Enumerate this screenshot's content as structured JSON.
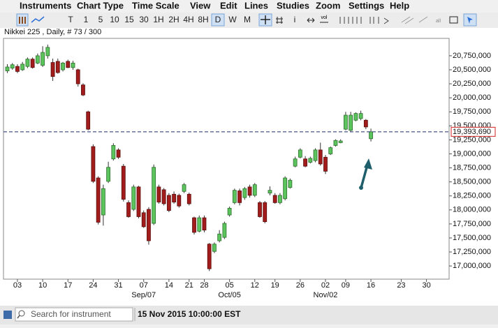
{
  "menu": [
    "Instruments",
    "Chart Type",
    "Time Scale",
    "View",
    "Edit",
    "Lines",
    "Studies",
    "Zoom",
    "Settings",
    "Help"
  ],
  "toolbar": [
    "T",
    "1",
    "5",
    "10",
    "15",
    "30",
    "1H",
    "2H",
    "4H",
    "8H",
    "D",
    "W",
    "M"
  ],
  "search_placeholder": "Search for instrument",
  "status_time": "15 Nov 2015 10:00:00 EST",
  "chart_data": {
    "type": "candlestick",
    "title": "Nikkei 225 , Daily, # 73 / 300",
    "categories": [
      null,
      null,
      "03",
      null,
      null,
      null,
      null,
      "10",
      null,
      null,
      null,
      null,
      "17",
      null,
      null,
      null,
      null,
      "24",
      null,
      null,
      null,
      null,
      "31",
      null,
      null,
      null,
      null,
      "07",
      null,
      null,
      null,
      null,
      "14",
      null,
      null,
      null,
      "21",
      null,
      null,
      "28",
      null,
      null,
      null,
      null,
      "05",
      null,
      null,
      null,
      null,
      "12",
      null,
      null,
      null,
      "19",
      null,
      null,
      null,
      null,
      "26",
      null,
      null,
      null,
      null,
      "02",
      null,
      null,
      null,
      "09",
      null,
      null,
      null,
      null,
      "16",
      null,
      null,
      null,
      null,
      null,
      "23",
      null,
      null,
      null,
      null,
      "30",
      null,
      null,
      null,
      null
    ],
    "month_labels": [
      null,
      null,
      null,
      null,
      null,
      null,
      null,
      null,
      null,
      null,
      null,
      null,
      null,
      null,
      null,
      null,
      null,
      null,
      null,
      null,
      null,
      null,
      null,
      null,
      null,
      null,
      null,
      "Sep/07",
      null,
      null,
      null,
      null,
      null,
      null,
      null,
      null,
      null,
      null,
      null,
      null,
      null,
      null,
      null,
      null,
      "Oct/05",
      null,
      null,
      null,
      null,
      null,
      null,
      null,
      null,
      null,
      null,
      null,
      null,
      null,
      null,
      null,
      null,
      null,
      null,
      "Nov/02",
      null,
      null,
      null,
      null,
      null,
      null,
      null,
      null,
      null,
      null,
      null,
      null,
      null,
      null,
      null,
      null,
      null,
      null,
      null,
      null,
      null,
      null,
      null,
      null
    ],
    "open": [
      20480000,
      20530000,
      20560000,
      20500000,
      20560000,
      20690000,
      20620000,
      20580000,
      20750000,
      20630000,
      20650000,
      20500000,
      20650000,
      20540000,
      20500000,
      20230000,
      19750000,
      19130000,
      18570000,
      17910000,
      18510000,
      18910000,
      19070000,
      18780000,
      18130000,
      18010000,
      18410000,
      17950000,
      18010000,
      17760000,
      18410000,
      18360000,
      18260000,
      18280000,
      18260000,
      18330000,
      18280000,
      17860000,
      17620000,
      17860000,
      17390000,
      17260000,
      17450000,
      17510000,
      17910000,
      18130000,
      18340000,
      18220000,
      18410000,
      18260000,
      18130000,
      18130000,
      18300000,
      18260000,
      18130000,
      18200000,
      18400000,
      18780000,
      18940000,
      18910000,
      18850000,
      18880000,
      19070000,
      18940000,
      19000000,
      19150000,
      19200000,
      19440000,
      19420000,
      19600000,
      19630000,
      19600000,
      19270000,
      null,
      null,
      null,
      null,
      null,
      null,
      null,
      null,
      null,
      null,
      null,
      null,
      null,
      null,
      null
    ],
    "high": [
      20600000,
      20620000,
      20600000,
      20640000,
      20720000,
      20720000,
      20790000,
      20920000,
      20950000,
      20700000,
      20700000,
      20640000,
      20680000,
      20660000,
      20520000,
      20260000,
      19770000,
      19170000,
      18600000,
      18450000,
      18860000,
      19190000,
      19100000,
      18820000,
      18170000,
      18450000,
      18430000,
      17990000,
      18050000,
      18810000,
      18450000,
      18390000,
      18300000,
      18330000,
      18290000,
      18480000,
      18310000,
      17880000,
      17900000,
      17900000,
      17410000,
      17420000,
      17640000,
      17790000,
      18060000,
      18380000,
      18380000,
      18410000,
      18450000,
      18480000,
      18160000,
      18160000,
      18420000,
      18300000,
      18300000,
      18600000,
      18560000,
      18950000,
      19100000,
      18960000,
      18950000,
      19100000,
      19200000,
      18980000,
      19130000,
      19260000,
      19260000,
      19750000,
      19750000,
      19740000,
      19770000,
      19620000,
      19450000,
      null,
      null,
      null,
      null,
      null,
      null,
      null,
      null,
      null,
      null,
      null,
      null,
      null,
      null,
      null
    ],
    "low": [
      20440000,
      20500000,
      20440000,
      20480000,
      20530000,
      20520000,
      20600000,
      20550000,
      20700000,
      20300000,
      20430000,
      20470000,
      20530000,
      20500000,
      20200000,
      20030000,
      19420000,
      18480000,
      17740000,
      17720000,
      18480000,
      18880000,
      18910000,
      18150000,
      17860000,
      17980000,
      17850000,
      17680000,
      17380000,
      17730000,
      18110000,
      18080000,
      17960000,
      18110000,
      18040000,
      18300000,
      18080000,
      17560000,
      17600000,
      17600000,
      16910000,
      17230000,
      17420000,
      17480000,
      17880000,
      18100000,
      18080000,
      18180000,
      18220000,
      18230000,
      17860000,
      17760000,
      18260000,
      18110000,
      18100000,
      18170000,
      18380000,
      18760000,
      18920000,
      18760000,
      18830000,
      18850000,
      18790000,
      18640000,
      18980000,
      19130000,
      19190000,
      19420000,
      19400000,
      19580000,
      19600000,
      19440000,
      19220000,
      null,
      null,
      null,
      null,
      null,
      null,
      null,
      null,
      null,
      null,
      null,
      null,
      null,
      null,
      null
    ],
    "close": [
      20550000,
      20590000,
      20470000,
      20600000,
      20690000,
      20540000,
      20750000,
      20810000,
      20900000,
      20380000,
      20450000,
      20620000,
      20540000,
      20620000,
      20250000,
      20050000,
      19440000,
      18510000,
      17780000,
      18380000,
      18760000,
      19150000,
      18940000,
      18190000,
      17880000,
      18410000,
      17880000,
      17700000,
      17450000,
      18760000,
      18140000,
      18110000,
      17990000,
      18140000,
      18070000,
      18450000,
      18110000,
      17600000,
      17860000,
      17640000,
      16950000,
      17390000,
      17570000,
      17760000,
      18030000,
      18350000,
      18130000,
      18380000,
      18260000,
      18450000,
      17880000,
      17790000,
      18350000,
      18130000,
      18260000,
      18570000,
      18530000,
      18910000,
      19070000,
      18780000,
      18920000,
      19070000,
      18820000,
      18690000,
      19110000,
      19240000,
      19230000,
      19690000,
      19690000,
      19720000,
      19720000,
      19480000,
      19393690,
      null,
      null,
      null,
      null,
      null,
      null,
      null,
      null,
      null,
      null,
      null,
      null,
      null,
      null,
      null
    ],
    "up_color": "#5cc45c",
    "down_color": "#a31c1c",
    "ylim": [
      16765000,
      21060000
    ],
    "yticks": [
      {
        "value": 17000000,
        "label": "17,000,000"
      },
      {
        "value": 17250000,
        "label": "17,250,000"
      },
      {
        "value": 17500000,
        "label": "17,500,000"
      },
      {
        "value": 17750000,
        "label": "17,750,000"
      },
      {
        "value": 18000000,
        "label": "18,000,000"
      },
      {
        "value": 18250000,
        "label": "18,250,000"
      },
      {
        "value": 18500000,
        "label": "18,500,000"
      },
      {
        "value": 18750000,
        "label": "18,750,000"
      },
      {
        "value": 19000000,
        "label": "19,000,000"
      },
      {
        "value": 19250000,
        "label": "19,250,000"
      },
      {
        "value": 19500000,
        "label": "19,500,000"
      },
      {
        "value": 19750000,
        "label": "19,750,000"
      },
      {
        "value": 20000000,
        "label": "20,000,000"
      },
      {
        "value": 20250000,
        "label": "20,250,000"
      },
      {
        "value": 20500000,
        "label": "20,500,000"
      },
      {
        "value": 20750000,
        "label": "20,750,000"
      }
    ],
    "last_price": {
      "value": 19393690,
      "label": "19,393,690"
    }
  }
}
